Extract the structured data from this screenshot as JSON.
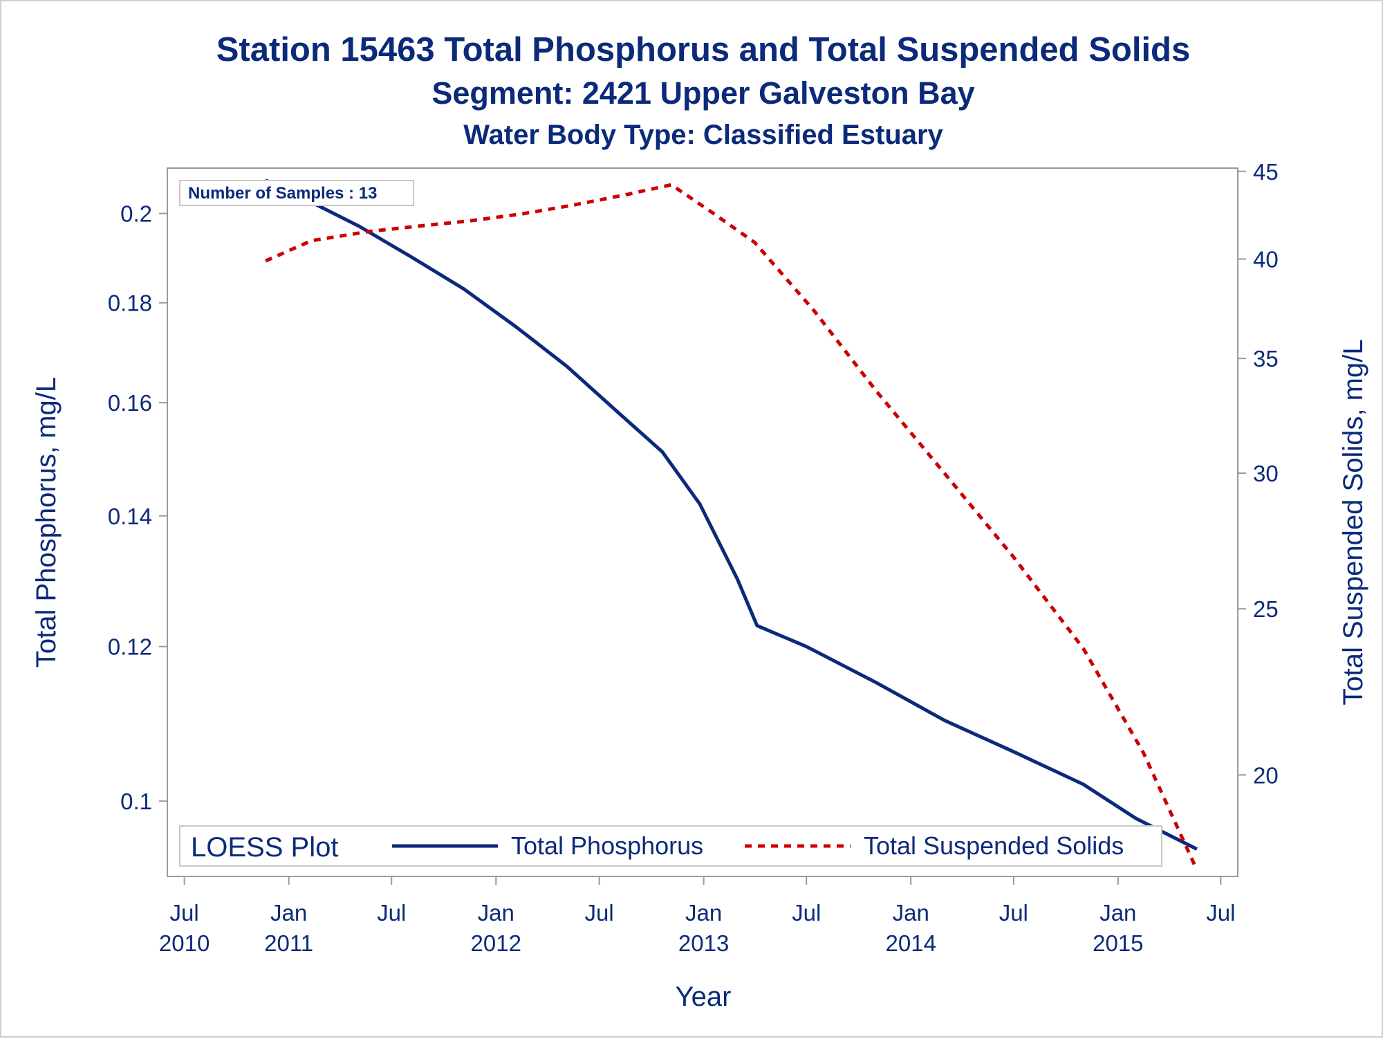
{
  "colors": {
    "text": "#0b2a7a",
    "phosphorus_line": "#0b2a7a",
    "tss_line": "#cc0000",
    "axis": "#9a9a9a",
    "background": "#ffffff"
  },
  "chart_data": {
    "type": "line",
    "title": "Station 15463  Total Phosphorus and Total Suspended Solids",
    "subtitle": "Segment: 2421  Upper Galveston Bay",
    "subtitle2": "Water Body Type: Classified Estuary",
    "xlabel": "Year",
    "ylabel_left": "Total Phosphorus, mg/L",
    "ylabel_right": "Total Suspended Solids, mg/L",
    "y_scale_left": "log",
    "y_scale_right": "log",
    "grid": false,
    "xlim": [
      "2010-06-01",
      "2015-07-31"
    ],
    "ylim_left": [
      0.0915,
      0.211
    ],
    "ylim_right": [
      17.45,
      45.2
    ],
    "x_ticks": [
      {
        "date": "2010-07-01",
        "label": "Jul",
        "year": "2010"
      },
      {
        "date": "2011-01-01",
        "label": "Jan",
        "year": "2011"
      },
      {
        "date": "2011-07-01",
        "label": "Jul",
        "year": ""
      },
      {
        "date": "2012-01-01",
        "label": "Jan",
        "year": "2012"
      },
      {
        "date": "2012-07-01",
        "label": "Jul",
        "year": ""
      },
      {
        "date": "2013-01-01",
        "label": "Jan",
        "year": "2013"
      },
      {
        "date": "2013-07-01",
        "label": "Jul",
        "year": ""
      },
      {
        "date": "2014-01-01",
        "label": "Jan",
        "year": "2014"
      },
      {
        "date": "2014-07-01",
        "label": "Jul",
        "year": ""
      },
      {
        "date": "2015-01-01",
        "label": "Jan",
        "year": "2015"
      },
      {
        "date": "2015-07-01",
        "label": "Jul",
        "year": ""
      }
    ],
    "y_ticks_left": [
      {
        "value": 0.1,
        "label": "0.1"
      },
      {
        "value": 0.12,
        "label": "0.12"
      },
      {
        "value": 0.14,
        "label": "0.14"
      },
      {
        "value": 0.16,
        "label": "0.16"
      },
      {
        "value": 0.18,
        "label": "0.18"
      },
      {
        "value": 0.2,
        "label": "0.2"
      }
    ],
    "y_ticks_right": [
      {
        "value": 20,
        "label": "20"
      },
      {
        "value": 25,
        "label": "25"
      },
      {
        "value": 30,
        "label": "30"
      },
      {
        "value": 35,
        "label": "35"
      },
      {
        "value": 40,
        "label": "40"
      },
      {
        "value": 45,
        "label": "45"
      }
    ],
    "legend": {
      "title": "LOESS Plot",
      "position": "bottom",
      "entries": [
        "Total Phosphorus",
        "Total Suspended Solids"
      ]
    },
    "inset_label": "Number of Samples : 13",
    "series": [
      {
        "name": "Total Phosphorus",
        "axis": "left",
        "style": "solid",
        "points": [
          {
            "x": "2010-11-21",
            "y": 0.208
          },
          {
            "x": "2011-02-05",
            "y": 0.203
          },
          {
            "x": "2011-05-05",
            "y": 0.197
          },
          {
            "x": "2011-08-05",
            "y": 0.19
          },
          {
            "x": "2011-11-05",
            "y": 0.183
          },
          {
            "x": "2012-02-05",
            "y": 0.175
          },
          {
            "x": "2012-05-05",
            "y": 0.167
          },
          {
            "x": "2012-08-05",
            "y": 0.158
          },
          {
            "x": "2012-10-20",
            "y": 0.151
          },
          {
            "x": "2012-12-25",
            "y": 0.142
          },
          {
            "x": "2013-03-01",
            "y": 0.13
          },
          {
            "x": "2013-04-05",
            "y": 0.123
          },
          {
            "x": "2013-07-01",
            "y": 0.12
          },
          {
            "x": "2013-11-01",
            "y": 0.115
          },
          {
            "x": "2014-03-01",
            "y": 0.11
          },
          {
            "x": "2014-07-01",
            "y": 0.106
          },
          {
            "x": "2014-11-01",
            "y": 0.102
          },
          {
            "x": "2015-02-01",
            "y": 0.098
          },
          {
            "x": "2015-05-20",
            "y": 0.0945
          }
        ]
      },
      {
        "name": "Total Suspended Solids",
        "axis": "right",
        "style": "dashed",
        "points": [
          {
            "x": "2010-11-21",
            "y": 39.9
          },
          {
            "x": "2011-02-10",
            "y": 41.0
          },
          {
            "x": "2011-05-20",
            "y": 41.5
          },
          {
            "x": "2011-08-15",
            "y": 41.8
          },
          {
            "x": "2011-11-15",
            "y": 42.1
          },
          {
            "x": "2012-02-15",
            "y": 42.5
          },
          {
            "x": "2012-05-15",
            "y": 43.0
          },
          {
            "x": "2012-08-15",
            "y": 43.6
          },
          {
            "x": "2012-11-05",
            "y": 44.2
          },
          {
            "x": "2013-01-15",
            "y": 42.6
          },
          {
            "x": "2013-04-01",
            "y": 40.9
          },
          {
            "x": "2013-07-15",
            "y": 37.3
          },
          {
            "x": "2013-11-01",
            "y": 33.5
          },
          {
            "x": "2014-03-01",
            "y": 30.0
          },
          {
            "x": "2014-07-01",
            "y": 26.8
          },
          {
            "x": "2014-11-01",
            "y": 23.7
          },
          {
            "x": "2015-02-15",
            "y": 20.6
          },
          {
            "x": "2015-05-20",
            "y": 17.6
          }
        ]
      }
    ]
  }
}
